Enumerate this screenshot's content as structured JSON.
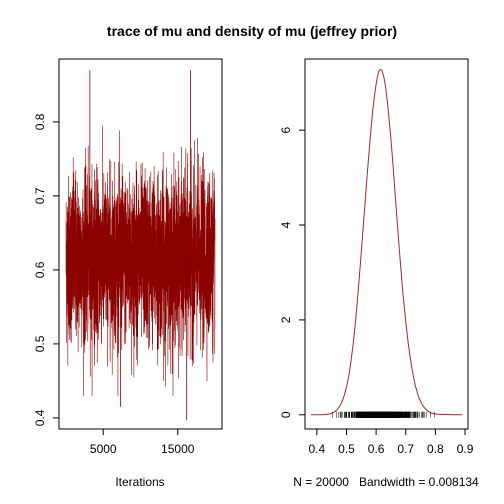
{
  "title": "trace of mu and density of mu (jeffrey prior)",
  "colors": {
    "trace": "#8b0000",
    "density": "#a52a2a",
    "rug": "#000000"
  },
  "chart_data": [
    {
      "type": "line",
      "name": "trace",
      "xlabel": "Iterations",
      "ylabel": "",
      "n_iterations": 20000,
      "xlim": [
        1,
        20000
      ],
      "ylim": [
        0.385,
        0.885
      ],
      "x_ticks": [
        5000,
        15000
      ],
      "y_ticks": [
        0.4,
        0.5,
        0.6,
        0.7,
        0.8
      ],
      "y_tick_labels": [
        "0.4",
        "0.5",
        "0.6",
        "0.7",
        "0.8"
      ],
      "mean": 0.615,
      "sd": 0.055,
      "typical_range": [
        0.46,
        0.78
      ],
      "extremes": [
        {
          "x": 3200,
          "y": 0.87
        },
        {
          "x": 16700,
          "y": 0.87
        },
        {
          "x": 7300,
          "y": 0.415
        },
        {
          "x": 16200,
          "y": 0.397
        }
      ],
      "grid": false
    },
    {
      "type": "line",
      "name": "density",
      "xlabel": "N = 20000   Bandwidth = 0.008134",
      "ylabel": "",
      "n": 20000,
      "bandwidth": 0.008134,
      "xlim": [
        0.36,
        0.91
      ],
      "ylim": [
        -0.3,
        7.5
      ],
      "x_ticks": [
        0.4,
        0.5,
        0.6,
        0.7,
        0.8,
        0.9
      ],
      "x_tick_labels": [
        "0.4",
        "0.5",
        "0.6",
        "0.7",
        "0.8",
        "0.9"
      ],
      "y_ticks": [
        0,
        2,
        4,
        6
      ],
      "y_tick_labels": [
        "0",
        "2",
        "4",
        "6"
      ],
      "x": [
        0.38,
        0.42,
        0.45,
        0.47,
        0.49,
        0.51,
        0.53,
        0.55,
        0.57,
        0.59,
        0.61,
        0.63,
        0.65,
        0.67,
        0.69,
        0.71,
        0.73,
        0.75,
        0.77,
        0.79,
        0.81,
        0.85,
        0.89
      ],
      "y": [
        0,
        0.002,
        0.03,
        0.12,
        0.36,
        0.91,
        1.94,
        3.43,
        5.07,
        6.49,
        7.25,
        6.99,
        5.8,
        4.16,
        2.6,
        1.43,
        0.68,
        0.28,
        0.1,
        0.03,
        0.01,
        0.002,
        0
      ],
      "rug_range": [
        0.43,
        0.86
      ],
      "grid": false
    }
  ]
}
